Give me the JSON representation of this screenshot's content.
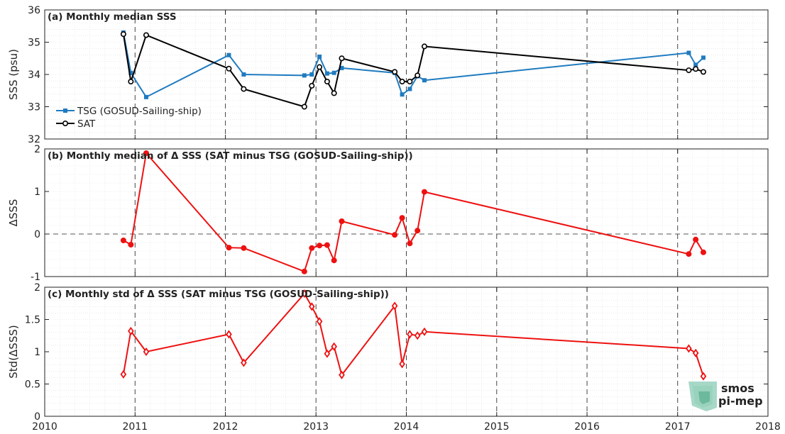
{
  "chart_data": [
    {
      "type": "line",
      "title": "(a) Monthly median SSS",
      "ylabel": "SSS (psu)",
      "ylim": [
        32,
        36
      ],
      "yticks": [
        32,
        33,
        34,
        35,
        36
      ],
      "grid": true,
      "legend": "left",
      "series": [
        {
          "name": "TSG (GOSUD-Sailing-ship)",
          "color": "#1f7bc0",
          "marker": "square",
          "x": [
            "2010-11-15",
            "2010-12-15",
            "2011-02-15",
            "2012-01-15",
            "2012-03-15",
            "2012-11-15",
            "2012-12-15",
            "2013-01-15",
            "2013-02-15",
            "2013-03-15",
            "2013-04-15",
            "2013-11-15",
            "2013-12-15",
            "2014-01-15",
            "2014-02-15",
            "2014-03-15",
            "2017-02-15",
            "2017-03-15",
            "2017-04-15"
          ],
          "values": [
            35.3,
            34.05,
            33.3,
            34.6,
            34.0,
            33.97,
            34.0,
            34.55,
            34.03,
            34.05,
            34.2,
            34.05,
            33.38,
            33.55,
            33.95,
            33.82,
            34.67,
            34.3,
            34.52
          ]
        },
        {
          "name": "SAT",
          "color": "#000000",
          "marker": "circle",
          "x": [
            "2010-11-15",
            "2010-12-15",
            "2011-02-15",
            "2012-01-15",
            "2012-03-15",
            "2012-11-15",
            "2012-12-15",
            "2013-01-15",
            "2013-02-15",
            "2013-03-15",
            "2013-04-15",
            "2013-11-15",
            "2013-12-15",
            "2014-01-15",
            "2014-02-15",
            "2014-03-15",
            "2017-02-15",
            "2017-03-15",
            "2017-04-15"
          ],
          "values": [
            35.25,
            33.78,
            35.22,
            34.18,
            33.55,
            33.0,
            33.65,
            34.23,
            33.78,
            33.42,
            34.5,
            34.08,
            33.78,
            33.78,
            33.97,
            34.87,
            34.13,
            34.17,
            34.08
          ]
        }
      ]
    },
    {
      "type": "line",
      "title": "(b) Monthly median of Δ SSS (SAT minus TSG (GOSUD-Sailing-ship))",
      "ylabel": "ΔSSS",
      "ylim": [
        -1,
        2
      ],
      "yticks": [
        -1,
        0,
        1,
        2
      ],
      "grid": true,
      "zero_line": true,
      "series": [
        {
          "name": "",
          "color": "#ee1111",
          "marker": "circle",
          "x": [
            "2010-11-15",
            "2010-12-15",
            "2011-02-15",
            "2012-01-15",
            "2012-03-15",
            "2012-11-15",
            "2012-12-15",
            "2013-01-15",
            "2013-02-15",
            "2013-03-15",
            "2013-04-15",
            "2013-11-15",
            "2013-12-15",
            "2014-01-15",
            "2014-02-15",
            "2014-03-15",
            "2017-02-15",
            "2017-03-15",
            "2017-04-15"
          ],
          "values": [
            -0.15,
            -0.25,
            1.9,
            -0.32,
            -0.33,
            -0.88,
            -0.33,
            -0.27,
            -0.26,
            -0.62,
            0.3,
            -0.02,
            0.38,
            -0.22,
            0.08,
            0.99,
            -0.47,
            -0.13,
            -0.43
          ]
        }
      ]
    },
    {
      "type": "line",
      "title": "(c) Monthly std of Δ SSS (SAT minus TSG (GOSUD-Sailing-ship))",
      "ylabel": "Std(ΔSSS)",
      "xlabel": "",
      "ylim": [
        0,
        2
      ],
      "yticks": [
        0,
        0.5,
        1,
        1.5,
        2
      ],
      "xlim": [
        "2010-01-01",
        "2018-01-01"
      ],
      "xticks": [
        "2010",
        "2011",
        "2012",
        "2013",
        "2014",
        "2015",
        "2016",
        "2017",
        "2018"
      ],
      "grid": true,
      "series": [
        {
          "name": "",
          "color": "#ee1111",
          "marker": "diamond",
          "x": [
            "2010-11-15",
            "2010-12-15",
            "2011-02-15",
            "2012-01-15",
            "2012-03-15",
            "2012-11-15",
            "2012-12-15",
            "2013-01-15",
            "2013-02-15",
            "2013-03-15",
            "2013-04-15",
            "2013-11-15",
            "2013-12-15",
            "2014-01-15",
            "2014-02-15",
            "2014-03-15",
            "2017-02-15",
            "2017-03-15",
            "2017-04-15"
          ],
          "values": [
            0.65,
            1.32,
            1.0,
            1.27,
            0.83,
            1.9,
            1.7,
            1.47,
            0.97,
            1.08,
            0.64,
            1.71,
            0.81,
            1.27,
            1.25,
            1.31,
            1.05,
            0.98,
            0.62
          ]
        }
      ]
    }
  ],
  "logo": {
    "line1": "smos",
    "line2": "pi-mep"
  }
}
